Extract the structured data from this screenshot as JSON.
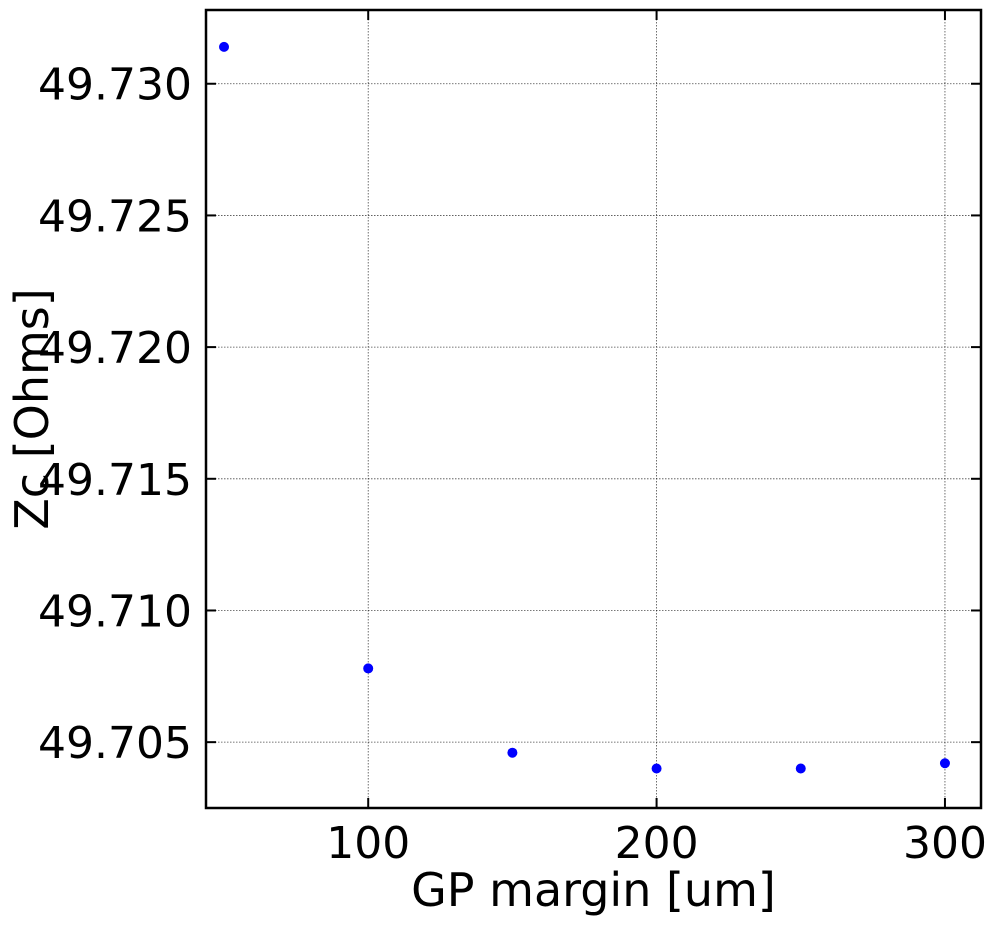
{
  "chart_data": {
    "type": "scatter",
    "title": "",
    "xlabel": "GP margin [um]",
    "ylabel": "Zc [Ohms]",
    "xlim": [
      43.75,
      312.5
    ],
    "ylim": [
      49.7025,
      49.7328
    ],
    "xticks": [
      100,
      200,
      300
    ],
    "xtick_labels": [
      "100",
      "200",
      "300"
    ],
    "yticks": [
      49.705,
      49.71,
      49.715,
      49.72,
      49.725,
      49.73
    ],
    "ytick_labels": [
      "49.705",
      "49.710",
      "49.715",
      "49.720",
      "49.725",
      "49.730"
    ],
    "grid": true,
    "marker_color": "#0000ff",
    "series": [
      {
        "x": [
          50,
          100,
          150,
          200,
          250,
          300
        ],
        "y": [
          49.7314,
          49.7078,
          49.7046,
          49.704,
          49.704,
          49.7042
        ]
      }
    ]
  }
}
